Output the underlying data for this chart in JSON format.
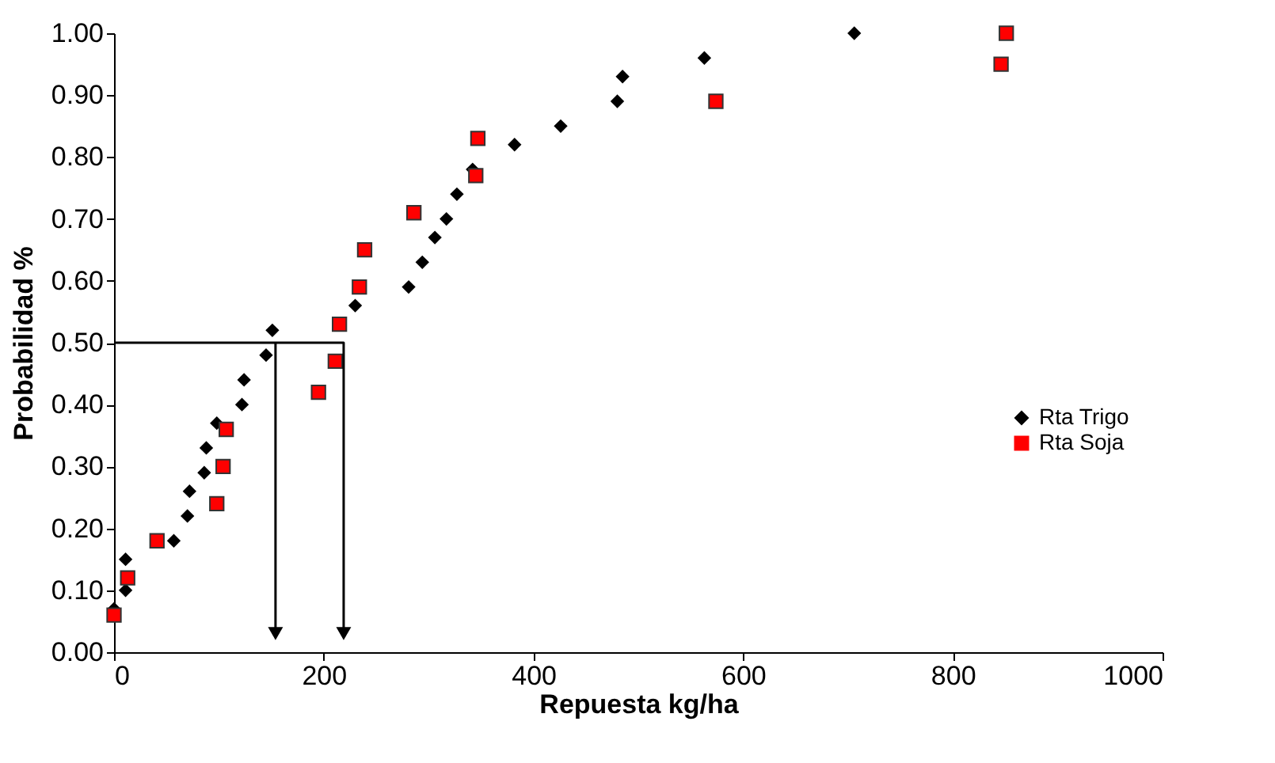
{
  "chart_data": {
    "type": "scatter",
    "xlabel": "Repuesta kg/ha",
    "ylabel": "Probabilidad %",
    "xlim": [
      0,
      1000
    ],
    "xticks": [
      0,
      200,
      400,
      600,
      800,
      {
        "value": 1000,
        "label": "1000"
      }
    ],
    "ylim": [
      0,
      1
    ],
    "yticks": [
      {
        "value": 0,
        "label": "0.00"
      },
      {
        "value": 0.1,
        "label": "0.10"
      },
      {
        "value": 0.2,
        "label": "0.20"
      },
      {
        "value": 0.3,
        "label": "0.30"
      },
      {
        "value": 0.4,
        "label": "0.40"
      },
      {
        "value": 0.5,
        "label": "0.50"
      },
      {
        "value": 0.6,
        "label": "0.60"
      },
      {
        "value": 0.7,
        "label": "0.70"
      },
      {
        "value": 0.8,
        "label": "0.80"
      },
      {
        "value": 0.9,
        "label": "0.90"
      },
      {
        "value": 1,
        "label": "1.00"
      }
    ],
    "grid": false,
    "legend": "right",
    "series": [
      {
        "name": "Rta Trigo",
        "color": "#000000",
        "marker": "diamond",
        "x": [
          0,
          11,
          11,
          57,
          70,
          72,
          86,
          88,
          98,
          122,
          124,
          145,
          151,
          230,
          281,
          294,
          306,
          317,
          327,
          342,
          382,
          426,
          480,
          485,
          563,
          706
        ],
        "values": [
          0.07,
          0.1,
          0.15,
          0.18,
          0.22,
          0.26,
          0.29,
          0.33,
          0.37,
          0.4,
          0.44,
          0.48,
          0.52,
          0.56,
          0.59,
          0.63,
          0.67,
          0.7,
          0.74,
          0.78,
          0.82,
          0.85,
          0.89,
          0.93,
          0.96,
          1.0
        ]
      },
      {
        "name": "Rta Soja",
        "color": "#ff0000",
        "marker": "square",
        "x": [
          0,
          13,
          41,
          98,
          104,
          107,
          195,
          211,
          215,
          234,
          239,
          286,
          345,
          347,
          574,
          846,
          851
        ],
        "values": [
          0.06,
          0.12,
          0.18,
          0.24,
          0.3,
          0.36,
          0.42,
          0.47,
          0.53,
          0.59,
          0.65,
          0.71,
          0.77,
          0.83,
          0.89,
          0.95,
          1.0
        ]
      },
      {
        "type": "line",
        "color": "#000000",
        "line_style": "solid",
        "x": [
          0,
          219,
          219
        ],
        "values": [
          0.5,
          0.5,
          0.03
        ]
      },
      {
        "type": "line",
        "color": "#000000",
        "line_style": "solid",
        "x": [
          154,
          154
        ],
        "values": [
          0.5,
          0.03
        ]
      }
    ]
  }
}
